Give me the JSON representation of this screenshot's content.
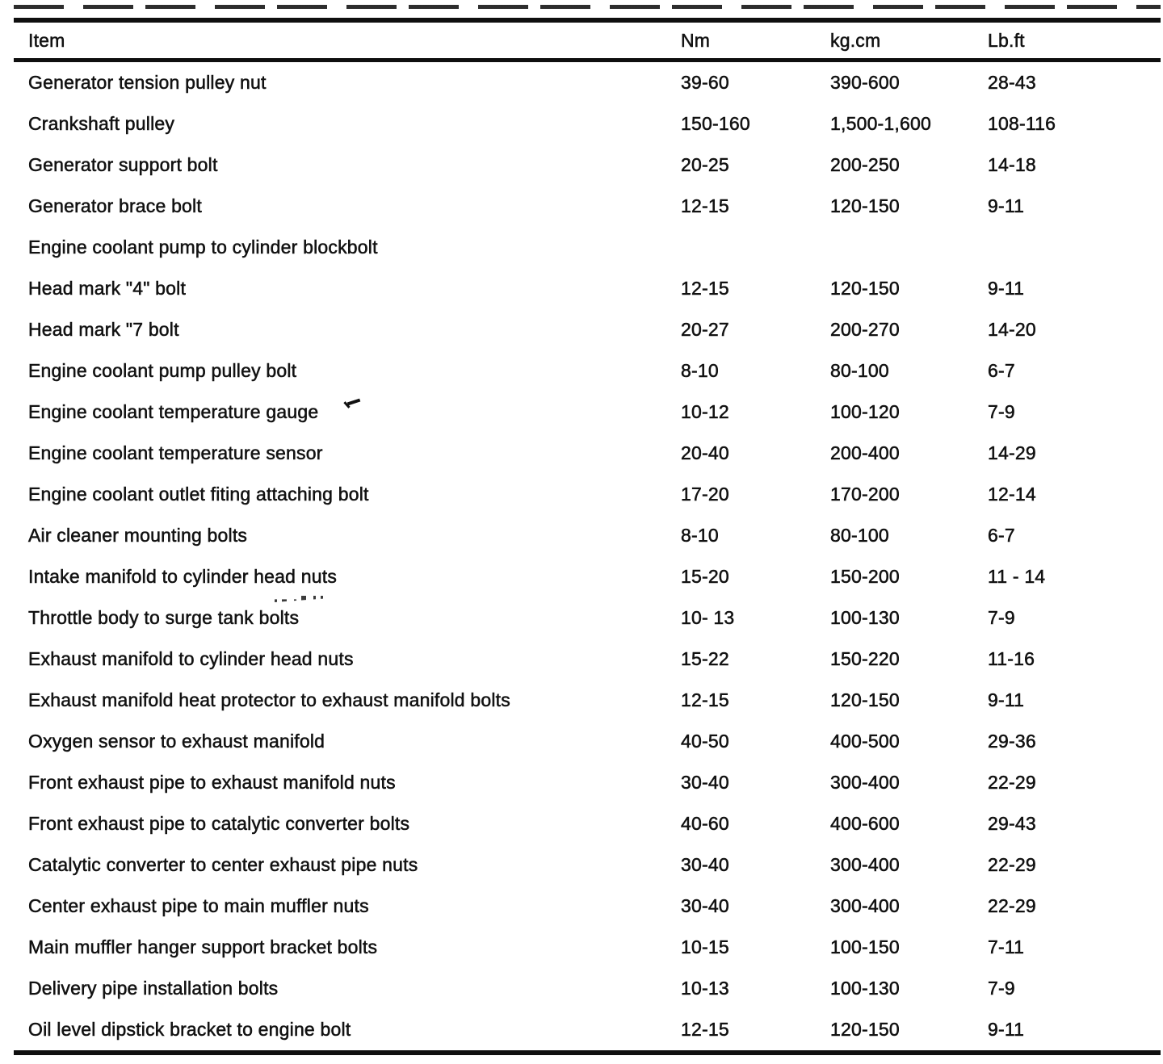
{
  "page": {
    "background": "#ffffff",
    "ink": "#121212"
  },
  "table": {
    "columns": [
      {
        "key": "item",
        "label": "Item"
      },
      {
        "key": "nm",
        "label": "Nm"
      },
      {
        "key": "kgcm",
        "label": "kg.cm"
      },
      {
        "key": "lbft",
        "label": "Lb.ft"
      }
    ],
    "rows": [
      {
        "item": "Generator tension pulley nut",
        "nm": "39-60",
        "kgcm": "390-600",
        "lbft": "28-43"
      },
      {
        "item": "Crankshaft pulley",
        "nm": "150-160",
        "kgcm": "1,500-1,600",
        "lbft": "108-116"
      },
      {
        "item": "Generator support bolt",
        "nm": "20-25",
        "kgcm": "200-250",
        "lbft": "14-18"
      },
      {
        "item": "Generator brace bolt",
        "nm": "12-15",
        "kgcm": "120-150",
        "lbft": "9-11"
      },
      {
        "item": "Engine coolant pump to cylinder blockbolt",
        "nm": "",
        "kgcm": "",
        "lbft": ""
      },
      {
        "item": "Head mark \"4\" bolt",
        "nm": "12-15",
        "kgcm": "120-150",
        "lbft": "9-11"
      },
      {
        "item": "Head mark \"7 bolt",
        "nm": "20-27",
        "kgcm": "200-270",
        "lbft": "14-20"
      },
      {
        "item": "Engine coolant pump pulley bolt",
        "nm": "8-10",
        "kgcm": "80-100",
        "lbft": "6-7"
      },
      {
        "item": "Engine coolant temperature gauge",
        "nm": "10-12",
        "kgcm": "100-120",
        "lbft": "7-9"
      },
      {
        "item": "Engine coolant temperature sensor",
        "nm": "20-40",
        "kgcm": "200-400",
        "lbft": "14-29"
      },
      {
        "item": "Engine coolant outlet fiting attaching bolt",
        "nm": "17-20",
        "kgcm": "170-200",
        "lbft": "12-14"
      },
      {
        "item": "Air cleaner mounting bolts",
        "nm": "8-10",
        "kgcm": "80-100",
        "lbft": "6-7"
      },
      {
        "item": "Intake manifold to cylinder head nuts",
        "nm": "15-20",
        "kgcm": "150-200",
        "lbft": "11 - 14"
      },
      {
        "item": "Throttle body to surge tank bolts",
        "nm": "10- 13",
        "kgcm": "100-130",
        "lbft": "7-9"
      },
      {
        "item": "Exhaust manifold to cylinder head nuts",
        "nm": "15-22",
        "kgcm": "150-220",
        "lbft": "11-16"
      },
      {
        "item": "Exhaust manifold heat protector to exhaust manifold bolts",
        "nm": "12-15",
        "kgcm": "120-150",
        "lbft": "9-11"
      },
      {
        "item": "Oxygen sensor to exhaust manifold",
        "nm": "40-50",
        "kgcm": "400-500",
        "lbft": "29-36"
      },
      {
        "item": "Front exhaust pipe to exhaust manifold nuts",
        "nm": "30-40",
        "kgcm": "300-400",
        "lbft": "22-29"
      },
      {
        "item": "Front exhaust pipe to catalytic converter bolts",
        "nm": "40-60",
        "kgcm": "400-600",
        "lbft": "29-43"
      },
      {
        "item": "Catalytic converter to center exhaust pipe nuts",
        "nm": "30-40",
        "kgcm": "300-400",
        "lbft": "22-29"
      },
      {
        "item": "Center exhaust pipe to main muffler nuts",
        "nm": "30-40",
        "kgcm": "300-400",
        "lbft": "22-29"
      },
      {
        "item": "Main muffler hanger support bracket bolts",
        "nm": "10-15",
        "kgcm": "100-150",
        "lbft": "7-11"
      },
      {
        "item": "Delivery pipe installation bolts",
        "nm": "10-13",
        "kgcm": "100-130",
        "lbft": "7-9"
      },
      {
        "item": "Oil level dipstick bracket to engine bolt",
        "nm": "12-15",
        "kgcm": "120-150",
        "lbft": "9-11"
      }
    ]
  }
}
